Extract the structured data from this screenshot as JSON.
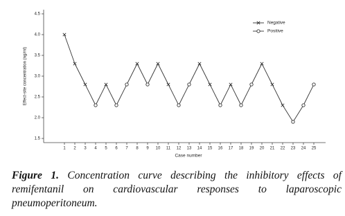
{
  "chart_data": {
    "type": "line",
    "y_label": "Effect-site concentration (ng/ml)",
    "x_label": "Case number",
    "categories": [
      "1",
      "2",
      "3",
      "4",
      "5",
      "6",
      "7",
      "8",
      "9",
      "10",
      "11",
      "12",
      "13",
      "14",
      "15",
      "16",
      "17",
      "18",
      "19",
      "20",
      "21",
      "22",
      "23",
      "24",
      "25"
    ],
    "series": [
      {
        "name": "Negative",
        "marker": "x",
        "color": "#333333",
        "values": [
          4.0,
          3.3,
          2.8,
          null,
          2.8,
          null,
          null,
          3.3,
          null,
          3.3,
          2.8,
          null,
          null,
          3.3,
          2.8,
          null,
          2.8,
          null,
          null,
          3.3,
          2.8,
          2.3,
          null,
          null,
          null
        ]
      },
      {
        "name": "Positive",
        "marker": "o",
        "color": "#333333",
        "values": [
          null,
          null,
          null,
          2.3,
          null,
          2.3,
          2.8,
          null,
          2.8,
          null,
          null,
          2.3,
          2.8,
          null,
          null,
          2.3,
          null,
          2.3,
          2.8,
          null,
          null,
          null,
          1.9,
          2.3,
          2.8
        ]
      }
    ],
    "ylim": [
      1.4,
      4.6
    ],
    "yticks": [
      1.5,
      {
        "value": 2,
        "label": "2.0"
      },
      2.5,
      {
        "value": 3,
        "label": "3.0"
      },
      3.5,
      {
        "value": 4,
        "label": "4.0"
      },
      4.5
    ],
    "legend": "top-right"
  },
  "caption": {
    "label": "Figure 1.",
    "text": "Concentration curve describing the inhibitory effects of remifentanil on cardiovascular responses to laparoscopic pneumoperitoneum."
  }
}
